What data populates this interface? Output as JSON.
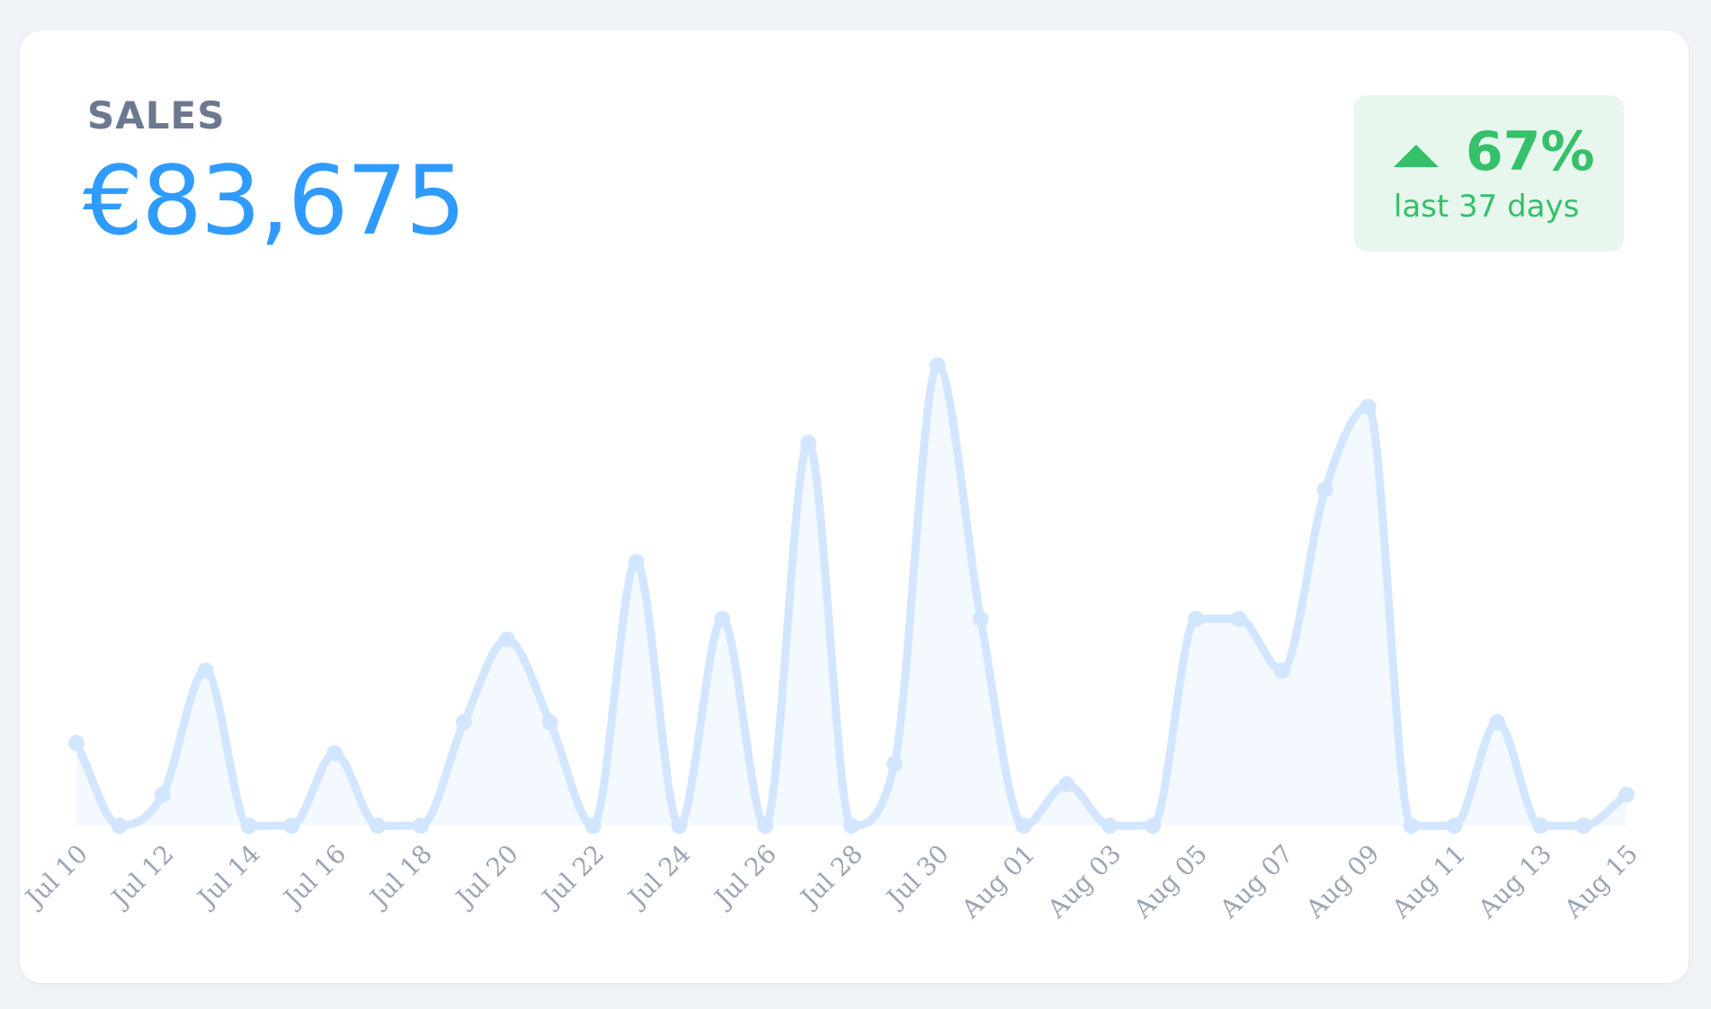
{
  "card": {
    "label": "SALES",
    "value": "€83,675"
  },
  "badge": {
    "percent": "67%",
    "period": "last 37 days",
    "color": "#35c06a",
    "background": "#e8f7ee"
  },
  "colors": {
    "value": "#2f9bff",
    "line": "#d3e6ff",
    "fill": "#f4f9ff"
  },
  "chart_data": {
    "type": "area",
    "title": "",
    "xlabel": "",
    "ylabel": "",
    "ylim": [
      0,
      18
    ],
    "x": [
      "Jul 10",
      "Jul 11",
      "Jul 12",
      "Jul 13",
      "Jul 14",
      "Jul 15",
      "Jul 16",
      "Jul 17",
      "Jul 18",
      "Jul 19",
      "Jul 20",
      "Jul 21",
      "Jul 22",
      "Jul 23",
      "Jul 24",
      "Jul 25",
      "Jul 26",
      "Jul 27",
      "Jul 28",
      "Jul 29",
      "Jul 30",
      "Jul 31",
      "Aug 01",
      "Aug 02",
      "Aug 03",
      "Aug 04",
      "Aug 05",
      "Aug 06",
      "Aug 07",
      "Aug 08",
      "Aug 09",
      "Aug 10",
      "Aug 11",
      "Aug 12",
      "Aug 13",
      "Aug 14",
      "Aug 15"
    ],
    "tick_labels": [
      "Jul 10",
      "Jul 12",
      "Jul 14",
      "Jul 16",
      "Jul 18",
      "Jul 20",
      "Jul 22",
      "Jul 24",
      "Jul 26",
      "Jul 28",
      "Jul 30",
      "Aug 01",
      "Aug 03",
      "Aug 05",
      "Aug 07",
      "Aug 09",
      "Aug 11",
      "Aug 13",
      "Aug 15"
    ],
    "series": [
      {
        "values": [
          3.2,
          0,
          1.2,
          6,
          0,
          0,
          2.8,
          0,
          0,
          4,
          7.2,
          4,
          0,
          10.2,
          0,
          8,
          0,
          14.8,
          0,
          2.4,
          17.8,
          8,
          0,
          1.6,
          0,
          0,
          8,
          8,
          6,
          13,
          16.2,
          0,
          0,
          4,
          0,
          0,
          1.2
        ]
      }
    ]
  }
}
